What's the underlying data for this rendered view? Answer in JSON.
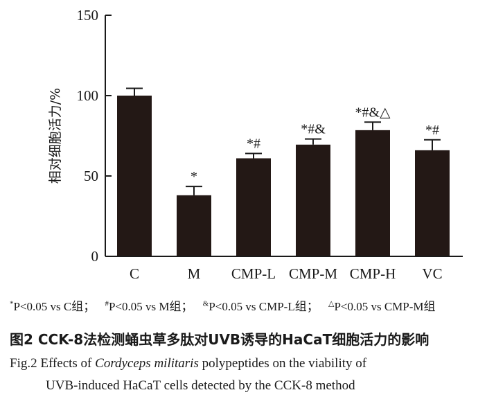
{
  "chart_data": {
    "type": "bar",
    "categories": [
      "C",
      "M",
      "CMP-L",
      "CMP-M",
      "CMP-H",
      "VC"
    ],
    "values": [
      100,
      38,
      61,
      69.5,
      78.5,
      66
    ],
    "errors": [
      4.5,
      5.5,
      3,
      3.5,
      5,
      6.5
    ],
    "significance": [
      "",
      "*",
      "*#",
      "*#&",
      "*#&△",
      "*#"
    ],
    "ylabel": "相对细胞活力/%",
    "xlabel": "",
    "ylim": [
      0,
      150
    ],
    "yticks": [
      0,
      50,
      100,
      150
    ],
    "bar_color": "#231815",
    "grid": false,
    "legend": "none"
  },
  "footnote": {
    "parts": [
      {
        "sup": "*",
        "text": "P<0.05 vs C组；"
      },
      {
        "sup": "#",
        "text": "P<0.05 vs M组；"
      },
      {
        "sup": "&",
        "text": "P<0.05 vs CMP-L组；"
      },
      {
        "sup": "△",
        "text": "P<0.05 vs CMP-M组"
      }
    ]
  },
  "caption": {
    "cn": "图2   CCK-8法检测蛹虫草多肽对UVB诱导的HaCaT细胞活力的影响",
    "en_prefix": "Fig.2    Effects of ",
    "en_species": "Cordyceps militaris",
    "en_rest": " polypeptides on the viability of",
    "en_line2": "UVB-induced HaCaT cells detected by the CCK-8 method"
  }
}
